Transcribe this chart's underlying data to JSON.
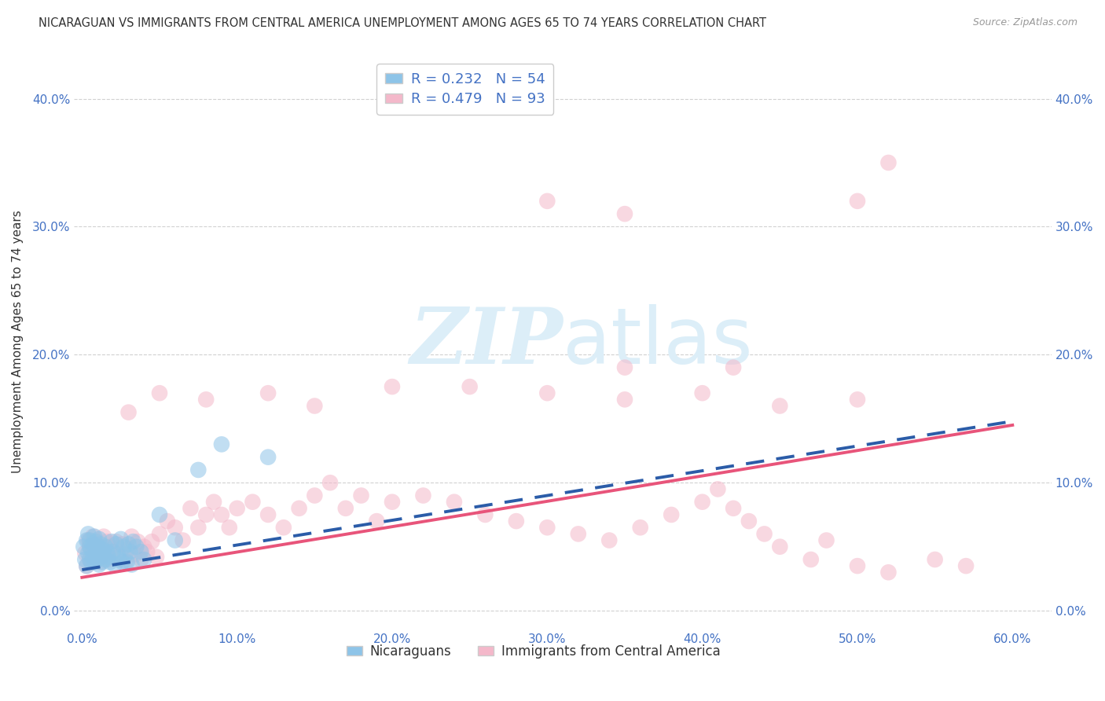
{
  "title": "NICARAGUAN VS IMMIGRANTS FROM CENTRAL AMERICA UNEMPLOYMENT AMONG AGES 65 TO 74 YEARS CORRELATION CHART",
  "source": "Source: ZipAtlas.com",
  "ylabel": "Unemployment Among Ages 65 to 74 years",
  "r1": 0.232,
  "n1": 54,
  "r2": 0.479,
  "n2": 93,
  "color1": "#8ec4e8",
  "color2": "#f4b8ca",
  "line1_color": "#2b5ca8",
  "line2_color": "#e8547a",
  "title_color": "#333333",
  "axis_label_color": "#4472c4",
  "watermark_zip": "ZIP",
  "watermark_atlas": "atlas",
  "watermark_color_zip": "#d6eaf8",
  "watermark_color_atlas": "#d6eaf8",
  "xlim": [
    -0.005,
    0.625
  ],
  "ylim": [
    -0.015,
    0.435
  ],
  "xticks": [
    0.0,
    0.1,
    0.2,
    0.3,
    0.4,
    0.5,
    0.6
  ],
  "yticks": [
    0.0,
    0.1,
    0.2,
    0.3,
    0.4
  ],
  "legend1_label": "R = 0.232   N = 54",
  "legend2_label": "R = 0.479   N = 93",
  "bottom_legend1": "Nicaraguans",
  "bottom_legend2": "Immigrants from Central America",
  "nic_line_x0": 0.0,
  "nic_line_x1": 0.6,
  "nic_line_y0": 0.032,
  "nic_line_y1": 0.148,
  "imm_line_x0": 0.0,
  "imm_line_x1": 0.6,
  "imm_line_y0": 0.026,
  "imm_line_y1": 0.145,
  "nicaraguan_x": [
    0.001,
    0.002,
    0.003,
    0.003,
    0.004,
    0.004,
    0.005,
    0.005,
    0.005,
    0.006,
    0.006,
    0.007,
    0.007,
    0.008,
    0.008,
    0.009,
    0.009,
    0.01,
    0.01,
    0.011,
    0.011,
    0.012,
    0.012,
    0.013,
    0.013,
    0.014,
    0.015,
    0.015,
    0.016,
    0.017,
    0.018,
    0.019,
    0.02,
    0.021,
    0.022,
    0.023,
    0.024,
    0.025,
    0.026,
    0.027,
    0.028,
    0.029,
    0.03,
    0.031,
    0.032,
    0.033,
    0.035,
    0.038,
    0.04,
    0.05,
    0.06,
    0.075,
    0.09,
    0.12
  ],
  "nicaraguan_y": [
    0.05,
    0.04,
    0.055,
    0.035,
    0.045,
    0.06,
    0.04,
    0.05,
    0.055,
    0.038,
    0.048,
    0.042,
    0.052,
    0.038,
    0.058,
    0.044,
    0.054,
    0.04,
    0.05,
    0.036,
    0.056,
    0.042,
    0.052,
    0.038,
    0.048,
    0.044,
    0.05,
    0.04,
    0.046,
    0.042,
    0.038,
    0.054,
    0.046,
    0.036,
    0.052,
    0.044,
    0.04,
    0.056,
    0.038,
    0.05,
    0.044,
    0.038,
    0.052,
    0.046,
    0.036,
    0.054,
    0.05,
    0.046,
    0.04,
    0.075,
    0.055,
    0.11,
    0.13,
    0.12
  ],
  "immigrant_x": [
    0.002,
    0.003,
    0.004,
    0.005,
    0.005,
    0.006,
    0.007,
    0.007,
    0.008,
    0.009,
    0.01,
    0.011,
    0.012,
    0.013,
    0.014,
    0.015,
    0.016,
    0.017,
    0.018,
    0.02,
    0.022,
    0.024,
    0.026,
    0.028,
    0.03,
    0.032,
    0.034,
    0.036,
    0.038,
    0.04,
    0.042,
    0.045,
    0.048,
    0.05,
    0.055,
    0.06,
    0.065,
    0.07,
    0.075,
    0.08,
    0.085,
    0.09,
    0.095,
    0.1,
    0.11,
    0.12,
    0.13,
    0.14,
    0.15,
    0.16,
    0.17,
    0.18,
    0.19,
    0.2,
    0.22,
    0.24,
    0.26,
    0.28,
    0.3,
    0.32,
    0.34,
    0.36,
    0.38,
    0.4,
    0.41,
    0.42,
    0.43,
    0.44,
    0.45,
    0.47,
    0.48,
    0.5,
    0.52,
    0.55,
    0.57,
    0.03,
    0.05,
    0.08,
    0.12,
    0.15,
    0.2,
    0.25,
    0.3,
    0.35,
    0.4,
    0.45,
    0.5,
    0.3,
    0.35,
    0.5,
    0.35,
    0.42,
    0.52
  ],
  "immigrant_y": [
    0.045,
    0.035,
    0.055,
    0.04,
    0.05,
    0.038,
    0.048,
    0.058,
    0.042,
    0.052,
    0.04,
    0.05,
    0.038,
    0.048,
    0.058,
    0.044,
    0.054,
    0.04,
    0.05,
    0.046,
    0.054,
    0.042,
    0.052,
    0.038,
    0.048,
    0.058,
    0.044,
    0.054,
    0.04,
    0.05,
    0.046,
    0.054,
    0.042,
    0.06,
    0.07,
    0.065,
    0.055,
    0.08,
    0.065,
    0.075,
    0.085,
    0.075,
    0.065,
    0.08,
    0.085,
    0.075,
    0.065,
    0.08,
    0.09,
    0.1,
    0.08,
    0.09,
    0.07,
    0.085,
    0.09,
    0.085,
    0.075,
    0.07,
    0.065,
    0.06,
    0.055,
    0.065,
    0.075,
    0.085,
    0.095,
    0.08,
    0.07,
    0.06,
    0.05,
    0.04,
    0.055,
    0.035,
    0.03,
    0.04,
    0.035,
    0.155,
    0.17,
    0.165,
    0.17,
    0.16,
    0.175,
    0.175,
    0.17,
    0.165,
    0.17,
    0.16,
    0.165,
    0.32,
    0.31,
    0.32,
    0.19,
    0.19,
    0.35
  ]
}
